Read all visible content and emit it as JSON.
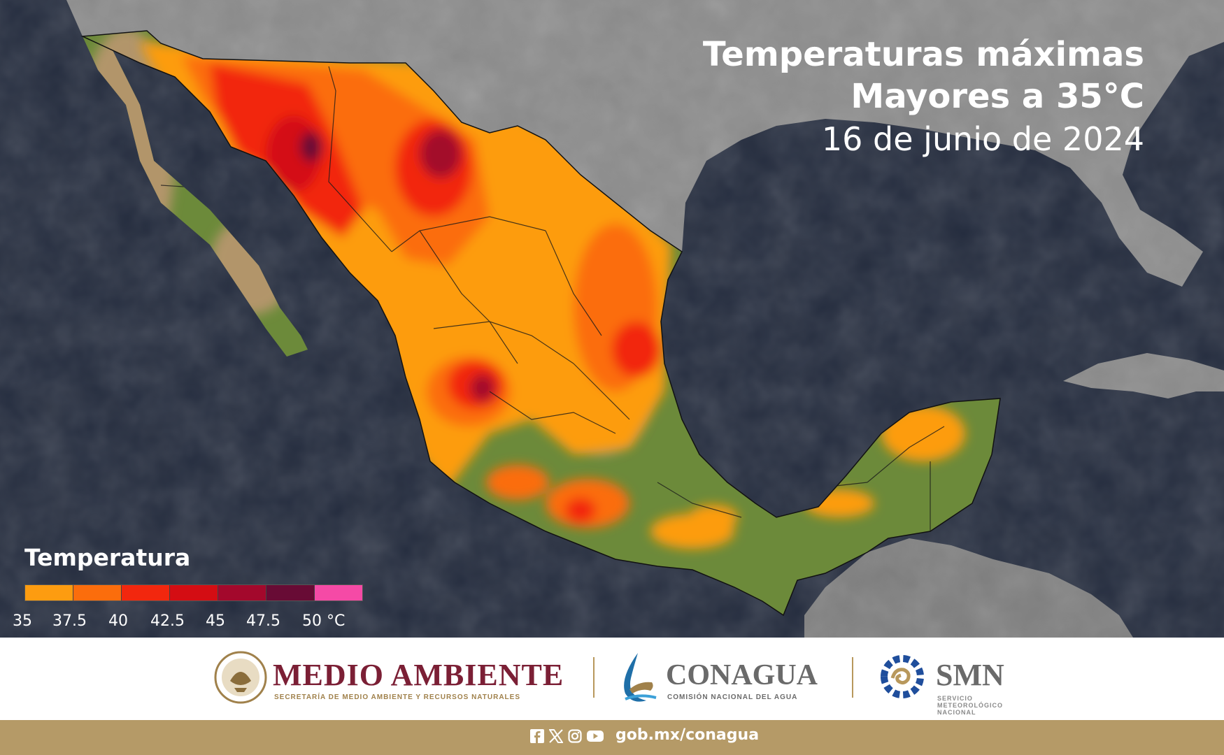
{
  "title": {
    "line1": "Temperaturas máximas",
    "line2": "Mayores a 35°C",
    "date": "16 de junio de 2024"
  },
  "legend": {
    "title": "Temperatura",
    "ticks": [
      "35",
      "37.5",
      "40",
      "42.5",
      "45",
      "47.5",
      "50 °C"
    ],
    "colors": [
      "#fd9c10",
      "#fb6d0c",
      "#f2270e",
      "#d40d13",
      "#a3082c",
      "#680b35",
      "#f54aa6"
    ]
  },
  "map_colors": {
    "ocean": "#242c3e",
    "land_outside": "#8c8c8c",
    "land_green": "#6c8a3a",
    "land_desert": "#b2956a"
  },
  "logos": {
    "medio_ambiente": {
      "name": "MEDIO AMBIENTE",
      "subtitle": "SECRETARÍA DE MEDIO AMBIENTE Y RECURSOS NATURALES"
    },
    "conagua": {
      "name": "CONAGUA",
      "subtitle": "COMISIÓN NACIONAL DEL AGUA"
    },
    "smn": {
      "name": "SMN",
      "subtitle": "SERVICIO METEOROLÓGICO NACIONAL"
    }
  },
  "footer": {
    "social_icons": [
      "facebook-icon",
      "x-icon",
      "instagram-icon",
      "youtube-icon"
    ],
    "url": "gob.mx/conagua"
  }
}
